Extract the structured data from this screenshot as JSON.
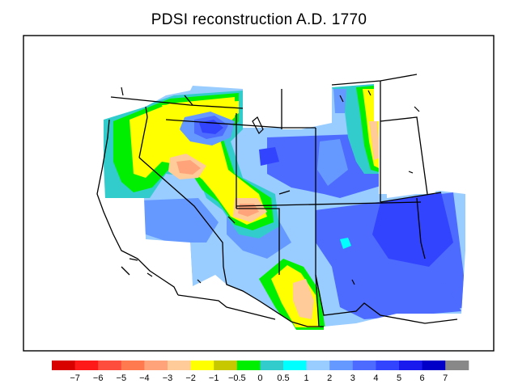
{
  "title": "PDSI reconstruction A.D. 1770",
  "legend": {
    "colors": [
      "#d90000",
      "#ff1a1a",
      "#ff4d3d",
      "#ff7a4f",
      "#ffa47a",
      "#ffcc99",
      "#ffff00",
      "#c8c800",
      "#00ee00",
      "#33cccc",
      "#00ffff",
      "#99ccff",
      "#6699ff",
      "#4d6bff",
      "#3344ff",
      "#1a1aee",
      "#0000c8",
      "#888888"
    ],
    "labels": [
      "−7",
      "−6",
      "−5",
      "−4",
      "−3",
      "−2",
      "−1",
      "−0.5",
      "0",
      "0.5",
      "1",
      "2",
      "3",
      "4",
      "5",
      "6",
      "7"
    ]
  },
  "map": {
    "region": "Western United States",
    "palette": {
      "very_wet": "#3344ff",
      "wet": "#4d6bff",
      "moist": "#6699ff",
      "slightly_moist": "#99ccff",
      "near_normal_wet": "#00ffff",
      "near_normal": "#33cccc",
      "normal": "#00ee00",
      "slightly_dry": "#c8c800",
      "dry": "#ffff00",
      "moderately_dry": "#ffcc99",
      "severely_dry": "#ffa47a",
      "extreme_dry": "#ff7a4f"
    }
  }
}
